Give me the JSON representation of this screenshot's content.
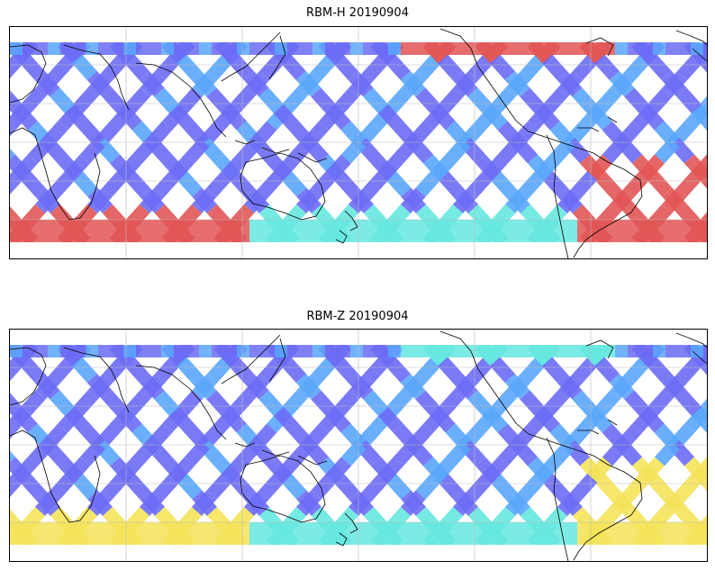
{
  "panels": [
    {
      "id": "rbm-h",
      "title": "RBM-H 20190904",
      "palette": {
        "low": "#6b6bf5",
        "midlow": "#5aa6fb",
        "mid": "#66e8e0",
        "midhigh": "#f5e35a",
        "high": "#e25555"
      },
      "intensity_bands": {
        "north_track_end": "high",
        "south_band": "high",
        "south_america_east": "high"
      }
    },
    {
      "id": "rbm-z",
      "title": "RBM-Z 20190904",
      "palette": {
        "low": "#6b6bf5",
        "midlow": "#5aa6fb",
        "mid": "#66e8e0",
        "midhigh": "#f5e35a",
        "high": "#e25555"
      },
      "intensity_bands": {
        "north_track_end": "mid",
        "south_band": "midhigh",
        "south_america_east": "midhigh"
      }
    }
  ],
  "map": {
    "projection": "plate-carree",
    "coastline_color": "#000000",
    "grid_color": "#bbbbbb",
    "background": "#ffffff"
  }
}
